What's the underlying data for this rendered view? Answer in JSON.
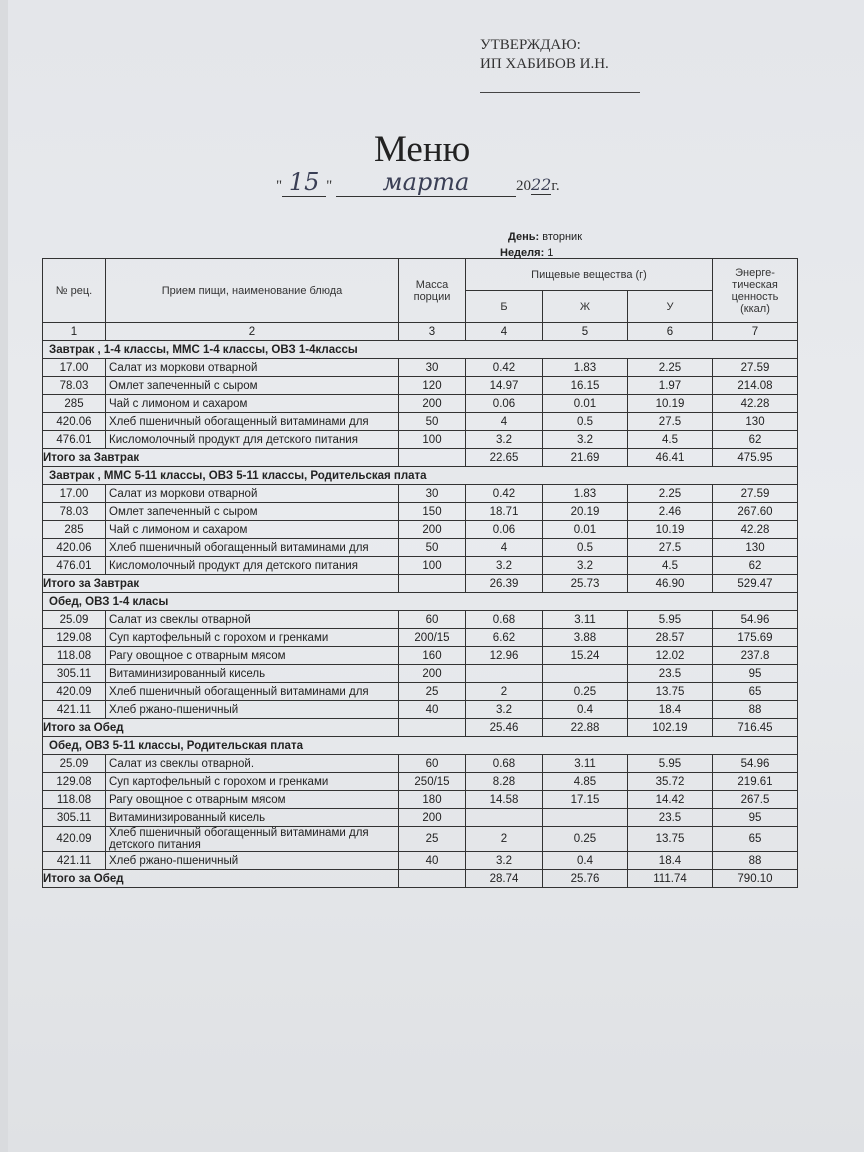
{
  "header": {
    "approve_line1": "УТВЕРЖДАЮ:",
    "approve_line2": "ИП ХАБИБОВ И.Н.",
    "title": "Меню",
    "date_day": "15",
    "date_month": "марта",
    "date_year_prefix": "20",
    "date_year_hand": "22",
    "date_year_suffix": "г.",
    "day_label": "День:",
    "day_value": "вторник",
    "week_label": "Неделя:",
    "week_value": "1"
  },
  "table": {
    "headers": {
      "rec_no": "№ рец.",
      "dish": "Прием пищи, наименование блюда",
      "mass": "Масса порции",
      "nutrients": "Пищевые вещества (г)",
      "b": "Б",
      "zh": "Ж",
      "u": "У",
      "energy": "Энерге-тическая ценность (ккал)"
    },
    "col_numbers": [
      "1",
      "2",
      "3",
      "4",
      "5",
      "6",
      "7"
    ],
    "sections": [
      {
        "title": "Завтрак , 1-4 классы, ММС 1-4 классы, ОВЗ 1-4классы",
        "items": [
          [
            "17.00",
            "Салат из моркови отварной",
            "30",
            "0.42",
            "1.83",
            "2.25",
            "27.59"
          ],
          [
            "78.03",
            "Омлет запеченный с сыром",
            "120",
            "14.97",
            "16.15",
            "1.97",
            "214.08"
          ],
          [
            "285",
            "Чай с лимоном и сахаром",
            "200",
            "0.06",
            "0.01",
            "10.19",
            "42.28"
          ],
          [
            "420.06",
            "Хлеб пшеничный обогащенный витаминами для",
            "50",
            "4",
            "0.5",
            "27.5",
            "130"
          ],
          [
            "476.01",
            "Кисломолочный продукт для детского питания",
            "100",
            "3.2",
            "3.2",
            "4.5",
            "62"
          ]
        ],
        "total": [
          "Итого за Завтрак",
          "22.65",
          "21.69",
          "46.41",
          "475.95"
        ]
      },
      {
        "title": "Завтрак , ММС 5-11 классы, ОВЗ 5-11 классы, Родительская плата",
        "items": [
          [
            "17.00",
            "Салат из моркови отварной",
            "30",
            "0.42",
            "1.83",
            "2.25",
            "27.59"
          ],
          [
            "78.03",
            "Омлет запеченный с сыром",
            "150",
            "18.71",
            "20.19",
            "2.46",
            "267.60"
          ],
          [
            "285",
            "Чай с лимоном и сахаром",
            "200",
            "0.06",
            "0.01",
            "10.19",
            "42.28"
          ],
          [
            "420.06",
            "Хлеб пшеничный обогащенный витаминами для",
            "50",
            "4",
            "0.5",
            "27.5",
            "130"
          ],
          [
            "476.01",
            "Кисломолочный продукт для детского питания",
            "100",
            "3.2",
            "3.2",
            "4.5",
            "62"
          ]
        ],
        "total": [
          "Итого за Завтрак",
          "26.39",
          "25.73",
          "46.90",
          "529.47"
        ]
      },
      {
        "title": "Обед, ОВЗ 1-4 класы",
        "items": [
          [
            "25.09",
            "Салат из свеклы отварной",
            "60",
            "0.68",
            "3.11",
            "5.95",
            "54.96"
          ],
          [
            "129.08",
            "Суп картофельный с горохом и гренками",
            "200/15",
            "6.62",
            "3.88",
            "28.57",
            "175.69"
          ],
          [
            "118.08",
            "Рагу овощное с отварным мясом",
            "160",
            "12.96",
            "15.24",
            "12.02",
            "237.8"
          ],
          [
            "305.11",
            "Витаминизированный кисель",
            "200",
            "",
            "",
            "23.5",
            "95"
          ],
          [
            "420.09",
            "Хлеб пшеничный обогащенный витаминами для",
            "25",
            "2",
            "0.25",
            "13.75",
            "65"
          ],
          [
            "421.11",
            "Хлеб ржано-пшеничный",
            "40",
            "3.2",
            "0.4",
            "18.4",
            "88"
          ]
        ],
        "total": [
          "Итого за Обед",
          "25.46",
          "22.88",
          "102.19",
          "716.45"
        ]
      },
      {
        "title": "Обед, ОВЗ 5-11 классы, Родительская плата",
        "items": [
          [
            "25.09",
            "Салат из свеклы отварной.",
            "60",
            "0.68",
            "3.11",
            "5.95",
            "54.96"
          ],
          [
            "129.08",
            "Суп картофельный с горохом и гренками",
            "250/15",
            "8.28",
            "4.85",
            "35.72",
            "219.61"
          ],
          [
            "118.08",
            "Рагу овощное с отварным мясом",
            "180",
            "14.58",
            "17.15",
            "14.42",
            "267.5"
          ],
          [
            "305.11",
            "Витаминизированный кисель",
            "200",
            "",
            "",
            "23.5",
            "95"
          ],
          [
            "420.09",
            "Хлеб пшеничный обогащенный витаминами для детского питания",
            "25",
            "2",
            "0.25",
            "13.75",
            "65"
          ],
          [
            "421.11",
            "Хлеб ржано-пшеничный",
            "40",
            "3.2",
            "0.4",
            "18.4",
            "88"
          ]
        ],
        "total": [
          "Итого за Обед",
          "28.74",
          "25.76",
          "111.74",
          "790.10"
        ]
      }
    ]
  }
}
